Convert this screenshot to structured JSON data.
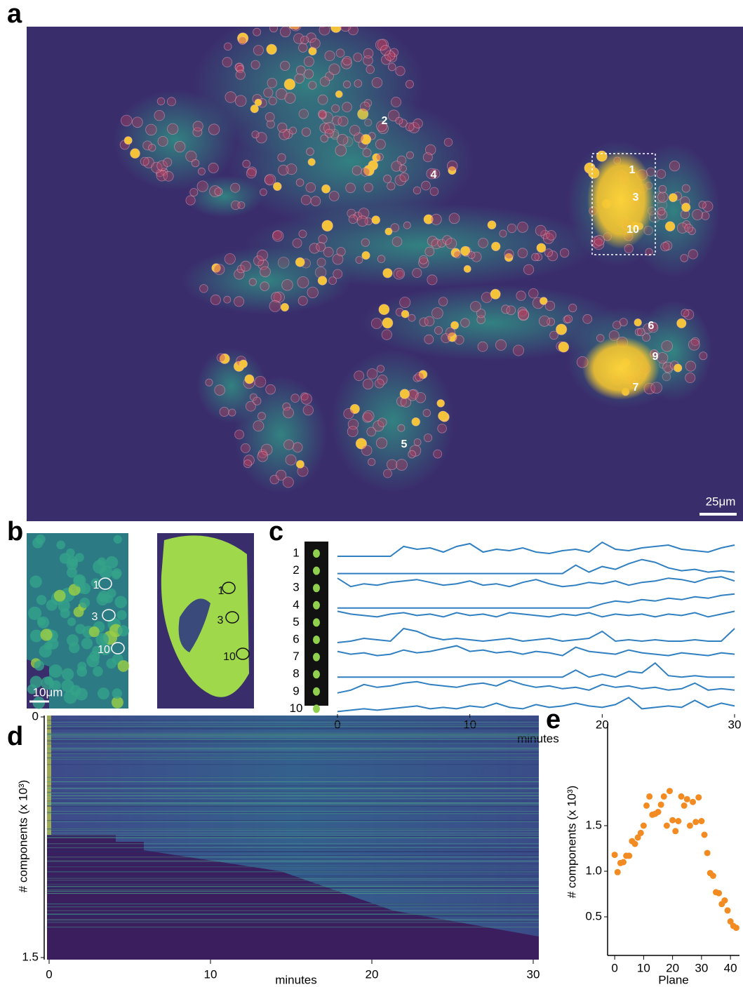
{
  "panel_labels": [
    "a",
    "b",
    "c",
    "d",
    "e"
  ],
  "panel_a": {
    "annotations": [
      "1",
      "2",
      "3",
      "4",
      "5",
      "6",
      "7",
      "9",
      "10"
    ],
    "scale_bar": "25μm"
  },
  "panel_b": {
    "left_labels": [
      "1",
      "3",
      "10"
    ],
    "right_labels": [
      "1",
      "3",
      "10"
    ],
    "scale_bar": "10μm"
  },
  "chart_data": [
    {
      "type": "line",
      "xlabel": "minutes",
      "xlim": [
        0,
        30
      ],
      "xticks": [
        0,
        10,
        20,
        30
      ],
      "color": "#2f7fc1",
      "x": [
        0,
        1,
        2,
        3,
        4,
        5,
        6,
        7,
        8,
        9,
        10,
        11,
        12,
        13,
        14,
        15,
        16,
        17,
        18,
        19,
        20,
        21,
        22,
        23,
        24,
        25,
        26,
        27,
        28,
        29,
        30
      ],
      "series": [
        {
          "name": "1",
          "values": [
            0,
            0,
            0,
            0,
            0,
            0.7,
            0.5,
            0.6,
            0.3,
            0.7,
            0.9,
            0.3,
            0.5,
            0.4,
            0.6,
            0.3,
            0.2,
            0.4,
            0.5,
            0.3,
            1,
            0.5,
            0.4,
            0.6,
            0.7,
            0.8,
            0.5,
            0.4,
            0.3,
            0.6,
            0.8
          ]
        },
        {
          "name": "2",
          "values": [
            0,
            0,
            0,
            0,
            0,
            0,
            0,
            0,
            0,
            0,
            0,
            0,
            0,
            0,
            0,
            0,
            0,
            0,
            0.6,
            0.1,
            0.5,
            0.3,
            0.7,
            1,
            0.8,
            0.4,
            0.2,
            0.3,
            0.1,
            0.2,
            0.1
          ]
        },
        {
          "name": "3",
          "values": [
            0.9,
            0.3,
            0.5,
            0.4,
            0.6,
            0.7,
            0.8,
            0.6,
            0.4,
            0.5,
            0.7,
            0.4,
            0.5,
            0.3,
            0.6,
            0.8,
            0.5,
            0.3,
            0.4,
            0.6,
            0.5,
            0.7,
            0.4,
            0.6,
            0.7,
            0.9,
            0.8,
            0.6,
            0.9,
            1,
            0.7
          ]
        },
        {
          "name": "4",
          "values": [
            0,
            0,
            0,
            0,
            0,
            0,
            0,
            0,
            0,
            0,
            0,
            0,
            0,
            0,
            0,
            0,
            0,
            0,
            0,
            0,
            0.3,
            0.5,
            0.4,
            0.6,
            0.5,
            0.7,
            0.6,
            0.8,
            0.7,
            0.9,
            1
          ]
        },
        {
          "name": "5",
          "values": [
            1,
            0.8,
            0.7,
            0.6,
            0.8,
            0.9,
            0.7,
            0.8,
            0.6,
            0.9,
            0.7,
            0.8,
            0.6,
            0.9,
            0.8,
            0.7,
            0.6,
            0.8,
            0.7,
            0.9,
            0.6,
            0.8,
            0.7,
            0.8,
            0.6,
            0.8,
            0.7,
            0.9,
            0.6,
            0.8,
            1
          ]
        },
        {
          "name": "6",
          "values": [
            0,
            0.1,
            0.3,
            0.2,
            0.1,
            1,
            0.8,
            0.4,
            0.2,
            0.3,
            0.2,
            0.1,
            0.2,
            0.3,
            0.1,
            0.2,
            0.3,
            0.1,
            0.2,
            0.3,
            0.8,
            0.1,
            0.2,
            0.1,
            0.2,
            0.1,
            0.1,
            0.2,
            0.1,
            0.1,
            1
          ]
        },
        {
          "name": "7",
          "values": [
            0.6,
            0.4,
            0.5,
            0.3,
            0.4,
            0.7,
            0.5,
            0.6,
            0.8,
            1,
            0.6,
            0.7,
            0.5,
            0.6,
            0.4,
            0.6,
            0.5,
            0.3,
            0.9,
            0.6,
            0.5,
            0.4,
            0.7,
            0.5,
            0.4,
            0.3,
            0.5,
            0.4,
            0.3,
            0.5,
            0.4
          ]
        },
        {
          "name": "8",
          "values": [
            0,
            0,
            0,
            0,
            0,
            0,
            0,
            0,
            0,
            0,
            0,
            0,
            0,
            0,
            0,
            0,
            0,
            0,
            0.5,
            0,
            0.2,
            0,
            0.4,
            0.3,
            1,
            0.1,
            0,
            0.1,
            0,
            0,
            0
          ]
        },
        {
          "name": "9",
          "values": [
            0.1,
            0.3,
            0.7,
            0.5,
            0.6,
            0.8,
            0.9,
            0.7,
            0.6,
            0.5,
            0.7,
            0.8,
            0.6,
            1,
            0.7,
            0.5,
            0.6,
            0.4,
            0.5,
            0.3,
            0.7,
            0.5,
            0.6,
            0.4,
            0.5,
            0.3,
            0.4,
            0.8,
            0.3,
            0.4,
            0.3
          ]
        },
        {
          "name": "10",
          "values": [
            0,
            0.1,
            0.2,
            0.1,
            0.2,
            0.3,
            0.4,
            0.2,
            0.3,
            0.2,
            0.4,
            0.3,
            0.6,
            0.3,
            0.2,
            0.5,
            0.3,
            0.4,
            0.6,
            0.4,
            0.3,
            0.5,
            1,
            0.2,
            0.3,
            0.4,
            0.3,
            0.8,
            0.3,
            0.6,
            0.4
          ]
        }
      ]
    },
    {
      "type": "heatmap",
      "xlabel": "minutes",
      "ylabel": "# components (x 10³)",
      "xlim": [
        0,
        30
      ],
      "xticks": [
        0,
        10,
        20,
        30
      ],
      "ylim": [
        0,
        1.5
      ],
      "yticks": [
        0,
        1.5
      ]
    },
    {
      "type": "scatter",
      "xlabel": "Plane",
      "ylabel": "# components (x 10³)",
      "color": "#f28b22",
      "xlim": [
        -1,
        43
      ],
      "xticks": [
        0,
        10,
        20,
        30,
        40
      ],
      "ylim": [
        0.1,
        2.6
      ],
      "yticks": [
        0.5,
        {
          "value": 1,
          "label": "1.0"
        },
        1.5
      ],
      "x": [
        0,
        1,
        2,
        3,
        4,
        5,
        6,
        7,
        8,
        9,
        10,
        11,
        12,
        13,
        14,
        15,
        16,
        17,
        18,
        19,
        20,
        21,
        22,
        23,
        24,
        25,
        26,
        27,
        28,
        29,
        30,
        31,
        32,
        33,
        34,
        35,
        36,
        37,
        38,
        39,
        40,
        41,
        42
      ],
      "values": [
        1.18,
        0.99,
        1.09,
        1.1,
        1.17,
        1.17,
        1.33,
        1.3,
        1.37,
        1.42,
        1.5,
        1.72,
        1.82,
        1.62,
        1.63,
        1.65,
        1.73,
        1.82,
        1.5,
        1.88,
        1.56,
        1.44,
        1.55,
        1.82,
        1.72,
        1.79,
        1.5,
        1.76,
        1.54,
        1.81,
        1.55,
        1.4,
        1.2,
        0.98,
        0.95,
        0.77,
        0.76,
        0.64,
        0.68,
        0.57,
        0.45,
        0.4,
        0.38
      ]
    }
  ]
}
